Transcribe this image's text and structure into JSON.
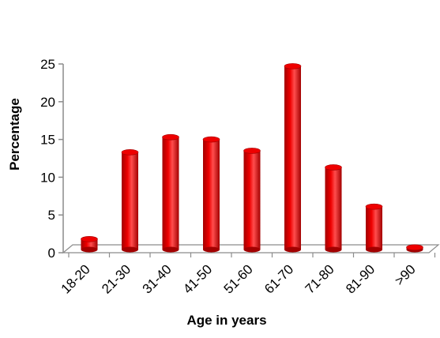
{
  "colors": {
    "bar_front": "#ee0000",
    "bar_shade": "#a30000",
    "bar_highlight": "#ff4d4d",
    "axis": "#8c8c8c"
  },
  "chart_data": {
    "type": "bar",
    "style": "3d-cylinder",
    "categories": [
      "18-20",
      "21-30",
      "31-40",
      "41-50",
      "51-60",
      "61-70",
      "71-80",
      "81-90",
      ">90"
    ],
    "values": [
      1.8,
      13.3,
      15.3,
      15.0,
      13.5,
      24.7,
      11.3,
      6.1,
      0.7
    ],
    "xlabel": "Age in years",
    "ylabel": "Percentage",
    "ylim": [
      0,
      25
    ],
    "yticks": [
      0,
      5,
      10,
      15,
      20,
      25
    ],
    "grid": false,
    "legend": "none"
  }
}
